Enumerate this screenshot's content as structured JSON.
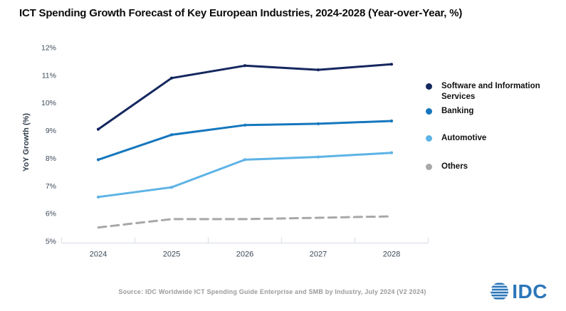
{
  "title": "ICT Spending Growth Forecast of Key European Industries, 2024-2028 (Year-over-Year, %)",
  "chart_data": {
    "type": "line",
    "x": [
      "2024",
      "2025",
      "2026",
      "2027",
      "2028"
    ],
    "xlabel": "",
    "ylabel": "YoY Growth (%)",
    "ylim": [
      5,
      12
    ],
    "ytick_step": 1,
    "ytick_suffix": "%",
    "grid": false,
    "legend_position": "right",
    "series": [
      {
        "name": "Software and Information Services",
        "values": [
          9.05,
          10.9,
          11.35,
          11.2,
          11.4
        ],
        "color": "#14275e",
        "dashed": false
      },
      {
        "name": "Banking",
        "values": [
          7.95,
          8.85,
          9.2,
          9.25,
          9.35
        ],
        "color": "#1577be",
        "dashed": false
      },
      {
        "name": "Automotive",
        "values": [
          6.6,
          6.95,
          7.95,
          8.05,
          8.2
        ],
        "color": "#5db3e6",
        "dashed": false
      },
      {
        "name": "Others",
        "values": [
          5.5,
          5.8,
          5.8,
          5.85,
          5.9
        ],
        "color": "#a8a8a8",
        "dashed": true
      }
    ]
  },
  "footer": {
    "source": "Source: IDC Worldwide ICT Spending Guide Enterprise and SMB by Industry, July 2024 (V2 2024)",
    "logo_text": "IDC",
    "logo_color": "#2b76b9"
  }
}
